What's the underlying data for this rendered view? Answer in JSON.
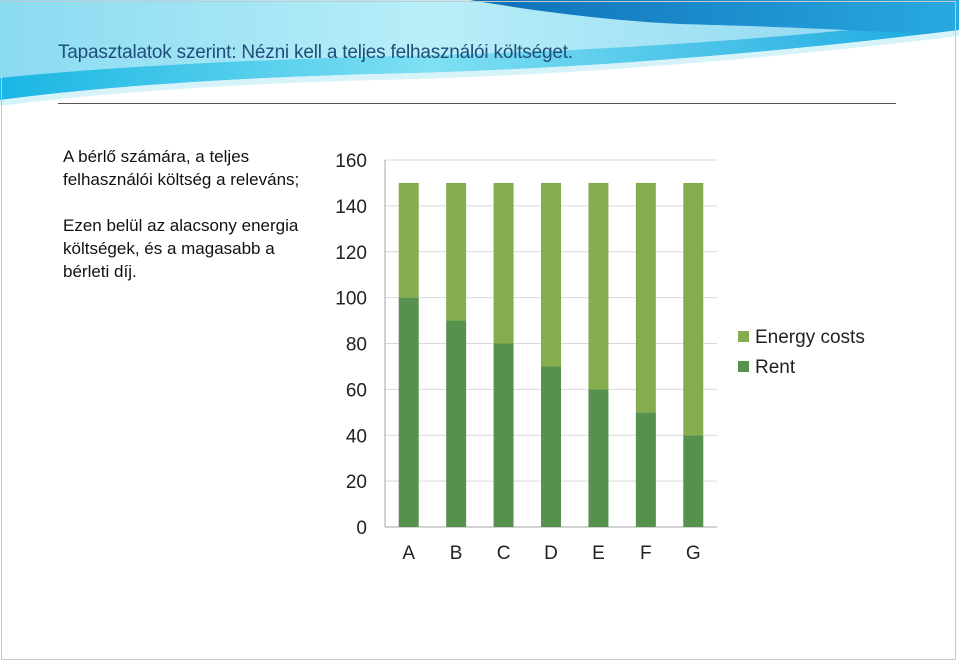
{
  "slide": {
    "title": "Tapasztalatok szerint: Nézni kell a teljes felhasználói költséget.",
    "paragraphs": [
      "A bérlő számára, a teljes felhasználói költség a releváns;",
      "Ezen belül az alacsony energia költségek, és a magasabb a bérleti díj."
    ]
  },
  "colors": {
    "title": "#1f4e79",
    "rent": "#56924e",
    "energy": "#85ad4f",
    "banner_cyan": "#29c6ea",
    "banner_blue": "#1b7fc4"
  },
  "chart_data": {
    "type": "bar",
    "stacked": true,
    "categories": [
      "A",
      "B",
      "C",
      "D",
      "E",
      "F",
      "G"
    ],
    "series": [
      {
        "name": "Rent",
        "values": [
          100,
          90,
          80,
          70,
          60,
          50,
          40
        ]
      },
      {
        "name": "Energy costs",
        "values": [
          50,
          60,
          70,
          80,
          90,
          100,
          110
        ]
      }
    ],
    "ylim": [
      0,
      160
    ],
    "yticks": [
      0,
      20,
      40,
      60,
      80,
      100,
      120,
      140,
      160
    ],
    "grid": true,
    "legend": "right",
    "title": "",
    "xlabel": "",
    "ylabel": ""
  }
}
